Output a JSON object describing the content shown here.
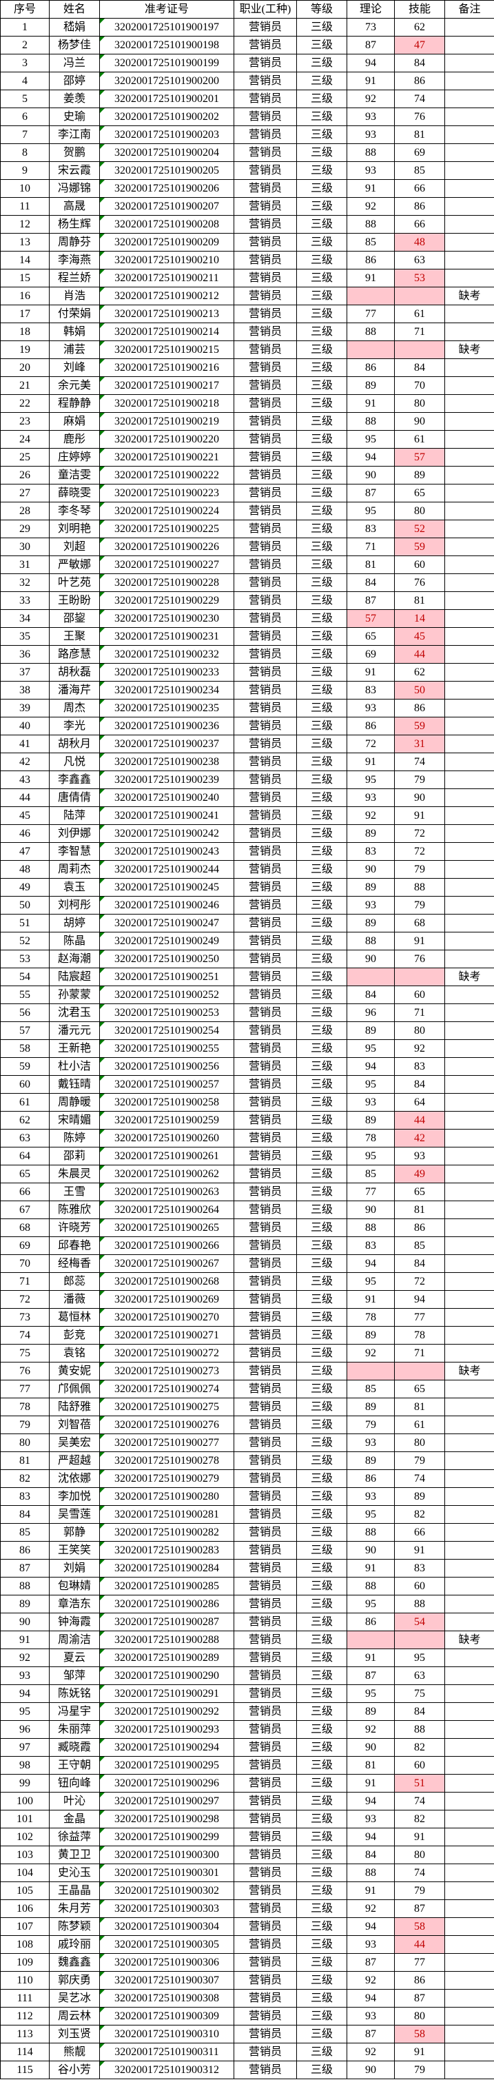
{
  "table": {
    "columns": [
      "序号",
      "姓名",
      "准考证号",
      "职业(工种)",
      "等级",
      "理论",
      "技能",
      "备注"
    ],
    "occupation": "营销员",
    "level": "三级",
    "absent_label": "缺考",
    "fail_threshold": 60,
    "colors": {
      "fail_bg": "#ffc7ce",
      "fail_text": "#c00000",
      "grid": "#000000",
      "triangle": "#008000"
    },
    "rows": [
      [
        1,
        "嵇娟",
        "3202001725101900197",
        "73",
        "62",
        ""
      ],
      [
        2,
        "杨梦佳",
        "3202001725101900198",
        "87",
        "47",
        ""
      ],
      [
        3,
        "冯兰",
        "3202001725101900199",
        "94",
        "84",
        ""
      ],
      [
        4,
        "邵婷",
        "3202001725101900200",
        "91",
        "86",
        ""
      ],
      [
        5,
        "姜羡",
        "3202001725101900201",
        "92",
        "74",
        ""
      ],
      [
        6,
        "史瑜",
        "3202001725101900202",
        "93",
        "76",
        ""
      ],
      [
        7,
        "李江南",
        "3202001725101900203",
        "93",
        "81",
        ""
      ],
      [
        8,
        "贺鹏",
        "3202001725101900204",
        "88",
        "69",
        ""
      ],
      [
        9,
        "宋云霞",
        "3202001725101900205",
        "93",
        "85",
        ""
      ],
      [
        10,
        "冯娜锦",
        "3202001725101900206",
        "91",
        "66",
        ""
      ],
      [
        11,
        "高晟",
        "3202001725101900207",
        "92",
        "86",
        ""
      ],
      [
        12,
        "杨生辉",
        "3202001725101900208",
        "88",
        "66",
        ""
      ],
      [
        13,
        "周静芬",
        "3202001725101900209",
        "85",
        "48",
        ""
      ],
      [
        14,
        "李海燕",
        "3202001725101900210",
        "86",
        "63",
        ""
      ],
      [
        15,
        "程兰娇",
        "3202001725101900211",
        "91",
        "53",
        ""
      ],
      [
        16,
        "肖浩",
        "3202001725101900212",
        "",
        "",
        "缺考"
      ],
      [
        17,
        "付荣娟",
        "3202001725101900213",
        "77",
        "61",
        ""
      ],
      [
        18,
        "韩娟",
        "3202001725101900214",
        "88",
        "71",
        ""
      ],
      [
        19,
        "浦芸",
        "3202001725101900215",
        "",
        "",
        "缺考"
      ],
      [
        20,
        "刘峰",
        "3202001725101900216",
        "86",
        "84",
        ""
      ],
      [
        21,
        "余元美",
        "3202001725101900217",
        "89",
        "70",
        ""
      ],
      [
        22,
        "程静静",
        "3202001725101900218",
        "91",
        "80",
        ""
      ],
      [
        23,
        "麻娟",
        "3202001725101900219",
        "88",
        "90",
        ""
      ],
      [
        24,
        "鹿彤",
        "3202001725101900220",
        "95",
        "61",
        ""
      ],
      [
        25,
        "庄婷婷",
        "3202001725101900221",
        "94",
        "57",
        ""
      ],
      [
        26,
        "童洁雯",
        "3202001725101900222",
        "90",
        "89",
        ""
      ],
      [
        27,
        "薛晓雯",
        "3202001725101900223",
        "87",
        "65",
        ""
      ],
      [
        28,
        "李冬琴",
        "3202001725101900224",
        "95",
        "80",
        ""
      ],
      [
        29,
        "刘明艳",
        "3202001725101900225",
        "83",
        "52",
        ""
      ],
      [
        30,
        "刘超",
        "3202001725101900226",
        "71",
        "59",
        ""
      ],
      [
        31,
        "严敏娜",
        "3202001725101900227",
        "81",
        "60",
        ""
      ],
      [
        32,
        "叶艺苑",
        "3202001725101900228",
        "84",
        "76",
        ""
      ],
      [
        33,
        "王盼盼",
        "3202001725101900229",
        "87",
        "81",
        ""
      ],
      [
        34,
        "邵鋆",
        "3202001725101900230",
        "57",
        "14",
        ""
      ],
      [
        35,
        "王聚",
        "3202001725101900231",
        "65",
        "45",
        ""
      ],
      [
        36,
        "路彦慧",
        "3202001725101900232",
        "69",
        "44",
        ""
      ],
      [
        37,
        "胡秋磊",
        "3202001725101900233",
        "91",
        "62",
        ""
      ],
      [
        38,
        "潘海芹",
        "3202001725101900234",
        "83",
        "50",
        ""
      ],
      [
        39,
        "周杰",
        "3202001725101900235",
        "93",
        "86",
        ""
      ],
      [
        40,
        "李光",
        "3202001725101900236",
        "86",
        "59",
        ""
      ],
      [
        41,
        "胡秋月",
        "3202001725101900237",
        "72",
        "31",
        ""
      ],
      [
        42,
        "凡悦",
        "3202001725101900238",
        "91",
        "74",
        ""
      ],
      [
        43,
        "李鑫鑫",
        "3202001725101900239",
        "95",
        "79",
        ""
      ],
      [
        44,
        "唐倩倩",
        "3202001725101900240",
        "93",
        "90",
        ""
      ],
      [
        45,
        "陆萍",
        "3202001725101900241",
        "92",
        "91",
        ""
      ],
      [
        46,
        "刘伊娜",
        "3202001725101900242",
        "89",
        "72",
        ""
      ],
      [
        47,
        "李智慧",
        "3202001725101900243",
        "83",
        "72",
        ""
      ],
      [
        48,
        "周莉杰",
        "3202001725101900244",
        "90",
        "79",
        ""
      ],
      [
        49,
        "袁玉",
        "3202001725101900245",
        "89",
        "88",
        ""
      ],
      [
        50,
        "刘柯彤",
        "3202001725101900246",
        "93",
        "79",
        ""
      ],
      [
        51,
        "胡婷",
        "3202001725101900247",
        "89",
        "68",
        ""
      ],
      [
        52,
        "陈晶",
        "3202001725101900249",
        "88",
        "91",
        ""
      ],
      [
        53,
        "赵海潮",
        "3202001725101900250",
        "90",
        "76",
        ""
      ],
      [
        54,
        "陆宸超",
        "3202001725101900251",
        "",
        "",
        "缺考"
      ],
      [
        55,
        "孙蒙蒙",
        "3202001725101900252",
        "84",
        "60",
        ""
      ],
      [
        56,
        "沈君玉",
        "3202001725101900253",
        "96",
        "71",
        ""
      ],
      [
        57,
        "潘元元",
        "3202001725101900254",
        "89",
        "80",
        ""
      ],
      [
        58,
        "王新艳",
        "3202001725101900255",
        "95",
        "92",
        ""
      ],
      [
        59,
        "杜小洁",
        "3202001725101900256",
        "94",
        "83",
        ""
      ],
      [
        60,
        "戴钰晴",
        "3202001725101900257",
        "95",
        "84",
        ""
      ],
      [
        61,
        "周静暖",
        "3202001725101900258",
        "93",
        "64",
        ""
      ],
      [
        62,
        "宋晴媚",
        "3202001725101900259",
        "89",
        "44",
        ""
      ],
      [
        63,
        "陈婷",
        "3202001725101900260",
        "78",
        "42",
        ""
      ],
      [
        64,
        "邵莉",
        "3202001725101900261",
        "95",
        "93",
        ""
      ],
      [
        65,
        "朱晨灵",
        "3202001725101900262",
        "85",
        "49",
        ""
      ],
      [
        66,
        "王雪",
        "3202001725101900263",
        "77",
        "65",
        ""
      ],
      [
        67,
        "陈雅欣",
        "3202001725101900264",
        "90",
        "81",
        ""
      ],
      [
        68,
        "许晓芳",
        "3202001725101900265",
        "88",
        "86",
        ""
      ],
      [
        69,
        "邱春艳",
        "3202001725101900266",
        "83",
        "85",
        ""
      ],
      [
        70,
        "经梅香",
        "3202001725101900267",
        "94",
        "84",
        ""
      ],
      [
        71,
        "郎蕊",
        "3202001725101900268",
        "95",
        "72",
        ""
      ],
      [
        72,
        "潘薇",
        "3202001725101900269",
        "91",
        "94",
        ""
      ],
      [
        73,
        "葛恒林",
        "3202001725101900270",
        "78",
        "77",
        ""
      ],
      [
        74,
        "彭竞",
        "3202001725101900271",
        "89",
        "78",
        ""
      ],
      [
        75,
        "袁铭",
        "3202001725101900272",
        "92",
        "71",
        ""
      ],
      [
        76,
        "黄安妮",
        "3202001725101900273",
        "",
        "",
        "缺考"
      ],
      [
        77,
        "邝佩佩",
        "3202001725101900274",
        "85",
        "65",
        ""
      ],
      [
        78,
        "陆舒雅",
        "3202001725101900275",
        "89",
        "81",
        ""
      ],
      [
        79,
        "刘智蓓",
        "3202001725101900276",
        "79",
        "61",
        ""
      ],
      [
        80,
        "吴美宏",
        "3202001725101900277",
        "93",
        "80",
        ""
      ],
      [
        81,
        "严超越",
        "3202001725101900278",
        "89",
        "79",
        ""
      ],
      [
        82,
        "沈依娜",
        "3202001725101900279",
        "86",
        "74",
        ""
      ],
      [
        83,
        "李加悦",
        "3202001725101900280",
        "93",
        "89",
        ""
      ],
      [
        84,
        "吴雪莲",
        "3202001725101900281",
        "95",
        "82",
        ""
      ],
      [
        85,
        "郭静",
        "3202001725101900282",
        "88",
        "66",
        ""
      ],
      [
        86,
        "王笑笑",
        "3202001725101900283",
        "90",
        "91",
        ""
      ],
      [
        87,
        "刘娟",
        "3202001725101900284",
        "91",
        "83",
        ""
      ],
      [
        88,
        "包琳婧",
        "3202001725101900285",
        "88",
        "60",
        ""
      ],
      [
        89,
        "章浩东",
        "3202001725101900286",
        "95",
        "88",
        ""
      ],
      [
        90,
        "钟海霞",
        "3202001725101900287",
        "86",
        "54",
        ""
      ],
      [
        91,
        "周渝洁",
        "3202001725101900288",
        "",
        "",
        "缺考"
      ],
      [
        92,
        "夏云",
        "3202001725101900289",
        "91",
        "95",
        ""
      ],
      [
        93,
        "邹萍",
        "3202001725101900290",
        "87",
        "63",
        ""
      ],
      [
        94,
        "陈妩铭",
        "3202001725101900291",
        "95",
        "75",
        ""
      ],
      [
        95,
        "冯星宇",
        "3202001725101900292",
        "89",
        "84",
        ""
      ],
      [
        96,
        "朱丽萍",
        "3202001725101900293",
        "92",
        "88",
        ""
      ],
      [
        97,
        "臧晓霞",
        "3202001725101900294",
        "90",
        "82",
        ""
      ],
      [
        98,
        "王守朝",
        "3202001725101900295",
        "81",
        "60",
        ""
      ],
      [
        99,
        "钮向峰",
        "3202001725101900296",
        "91",
        "51",
        ""
      ],
      [
        100,
        "叶沁",
        "3202001725101900297",
        "94",
        "74",
        ""
      ],
      [
        101,
        "金晶",
        "3202001725101900298",
        "93",
        "82",
        ""
      ],
      [
        102,
        "徐益萍",
        "3202001725101900299",
        "94",
        "91",
        ""
      ],
      [
        103,
        "黄卫卫",
        "3202001725101900300",
        "84",
        "80",
        ""
      ],
      [
        104,
        "史沁玉",
        "3202001725101900301",
        "88",
        "74",
        ""
      ],
      [
        105,
        "王晶晶",
        "3202001725101900302",
        "91",
        "79",
        ""
      ],
      [
        106,
        "朱月芳",
        "3202001725101900303",
        "92",
        "87",
        ""
      ],
      [
        107,
        "陈梦颖",
        "3202001725101900304",
        "94",
        "58",
        ""
      ],
      [
        108,
        "戚玲丽",
        "3202001725101900305",
        "93",
        "44",
        ""
      ],
      [
        109,
        "魏鑫鑫",
        "3202001725101900306",
        "87",
        "77",
        ""
      ],
      [
        110,
        "郭庆勇",
        "3202001725101900307",
        "92",
        "86",
        ""
      ],
      [
        111,
        "吴艺冰",
        "3202001725101900308",
        "94",
        "87",
        ""
      ],
      [
        112,
        "周云林",
        "3202001725101900309",
        "93",
        "80",
        ""
      ],
      [
        113,
        "刘玉贤",
        "3202001725101900310",
        "87",
        "58",
        ""
      ],
      [
        114,
        "熊靓",
        "3202001725101900311",
        "92",
        "91",
        ""
      ],
      [
        115,
        "谷小芳",
        "3202001725101900312",
        "90",
        "79",
        ""
      ]
    ]
  }
}
